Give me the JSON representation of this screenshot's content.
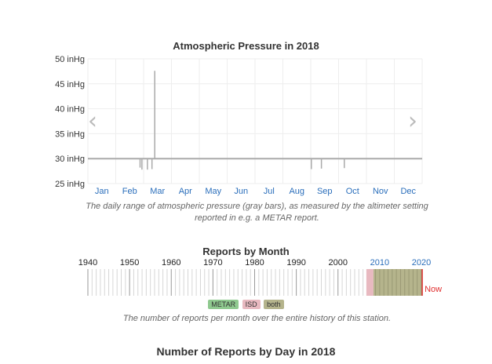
{
  "chart_data": [
    {
      "type": "bar",
      "title": "Atmospheric Pressure in 2018",
      "ylabel": "",
      "y_unit": "inHg",
      "ylim": [
        25,
        50
      ],
      "yticks": [
        "25 inHg",
        "30 inHg",
        "35 inHg",
        "40 inHg",
        "45 inHg",
        "50 inHg"
      ],
      "ytick_values": [
        25,
        30,
        35,
        40,
        45,
        50
      ],
      "xticks": [
        "Jan",
        "Feb",
        "Mar",
        "Apr",
        "May",
        "Jun",
        "Jul",
        "Aug",
        "Sep",
        "Oct",
        "Nov",
        "Dec"
      ],
      "grid": true,
      "baseline": 30,
      "series": [
        {
          "values": [
            {
              "day": 57,
              "low": 28.2,
              "high": 30.0
            },
            {
              "day": 59,
              "low": 27.8,
              "high": 30.0
            },
            {
              "day": 65,
              "low": 27.8,
              "high": 30.0
            },
            {
              "day": 70,
              "low": 27.9,
              "high": 30.0
            },
            {
              "day": 73,
              "low": 30.0,
              "high": 47.6
            },
            {
              "day": 244,
              "low": 27.9,
              "high": 30.0
            },
            {
              "day": 255,
              "low": 28.0,
              "high": 30.0
            },
            {
              "day": 280,
              "low": 28.1,
              "high": 30.0
            }
          ]
        }
      ],
      "caption": "The daily range of atmospheric pressure (gray bars), as measured by the altimeter setting reported in e.g. a METAR report."
    },
    {
      "type": "bar",
      "title": "Reports by Month",
      "xticks": [
        "1940",
        "1950",
        "1960",
        "1970",
        "1980",
        "1990",
        "2000",
        "2010",
        "2020"
      ],
      "xtick_values": [
        1940,
        1950,
        1960,
        1970,
        1980,
        1990,
        2000,
        2010,
        2020
      ],
      "xlim": [
        1940,
        2020
      ],
      "highlight_ticks": [
        "2010",
        "2020"
      ],
      "now_label": "Now",
      "now_year": 2020.2,
      "series": [
        {
          "name": "METAR",
          "range": [
            2008.5,
            2020.2
          ]
        },
        {
          "name": "ISD",
          "range": [
            2006.8,
            2008.5
          ]
        },
        {
          "name": "both",
          "range": [
            2008.5,
            2020.2
          ]
        }
      ],
      "legend": [
        "METAR",
        "ISD",
        "both"
      ],
      "caption": "The number of reports per month over the entire history of this station."
    }
  ],
  "nav": {
    "prev": "‹",
    "next": "›"
  },
  "daily": {
    "title": "Number of Reports by Day in 2018"
  },
  "colors": {
    "bar": "#aaaaaa",
    "grid": "#eeeeee",
    "axis_month": "#2a6ebb",
    "now": "#e03030",
    "metar": "#8fc98f",
    "isd": "#e8b9c0",
    "both": "#b5b48c"
  }
}
